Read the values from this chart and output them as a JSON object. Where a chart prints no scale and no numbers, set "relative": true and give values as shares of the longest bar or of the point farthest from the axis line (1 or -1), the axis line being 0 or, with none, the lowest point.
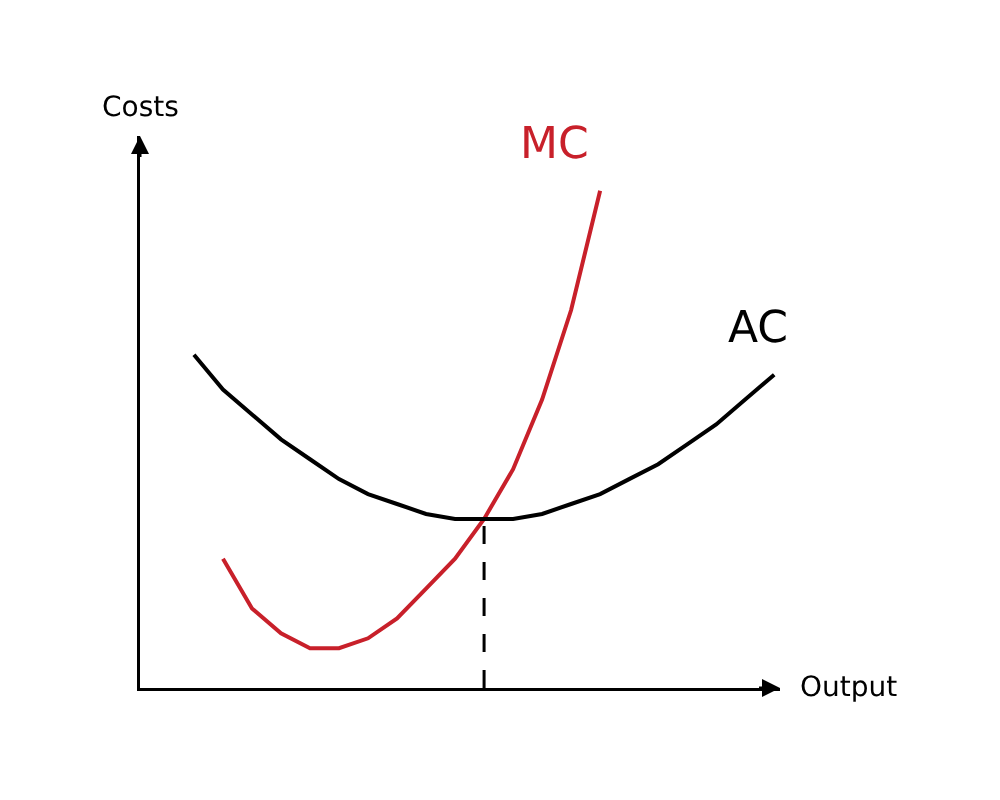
{
  "chart_data": {
    "type": "line",
    "relative": true,
    "xlabel": "Output",
    "ylabel": "Costs",
    "categories": [
      null,
      null,
      null,
      null,
      null,
      null,
      null,
      null,
      null,
      null,
      null,
      null,
      null,
      null,
      null,
      null,
      null,
      null,
      null,
      null,
      null
    ],
    "series": [
      {
        "name": "MC",
        "color": "#c8202a",
        "values": [
          null,
          0.26,
          0.16,
          0.11,
          0.08,
          0.08,
          0.1,
          0.14,
          0.2,
          0.26,
          0.34,
          0.44,
          0.58,
          0.76,
          1,
          null,
          null,
          null,
          null,
          null,
          null
        ]
      },
      {
        "name": "AC",
        "color": "#000000",
        "values": [
          0.67,
          0.6,
          0.55,
          0.5,
          0.46,
          0.42,
          0.39,
          0.37,
          0.35,
          0.34,
          0.34,
          0.34,
          0.35,
          0.37,
          0.39,
          0.42,
          0.45,
          0.49,
          0.53,
          0.58,
          0.63
        ]
      }
    ],
    "legend": false,
    "marker": "none",
    "line_style": "solid"
  }
}
